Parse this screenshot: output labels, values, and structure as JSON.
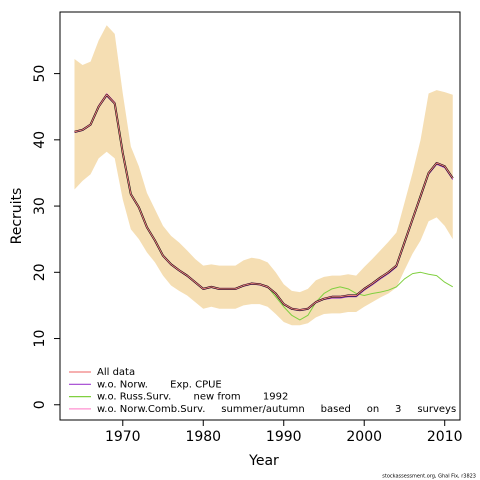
{
  "chart_data": {
    "type": "line",
    "xlabel": "Year",
    "ylabel": "Recruits",
    "footnote": "stockassessment.org, Ghal Fix, r3823",
    "x": [
      1964,
      1965,
      1966,
      1967,
      1968,
      1969,
      1970,
      1971,
      1972,
      1973,
      1974,
      1975,
      1976,
      1977,
      1978,
      1979,
      1980,
      1981,
      1982,
      1983,
      1984,
      1985,
      1986,
      1987,
      1988,
      1989,
      1990,
      1991,
      1992,
      1993,
      1994,
      1995,
      1996,
      1997,
      1998,
      1999,
      2000,
      2001,
      2002,
      2003,
      2004,
      2005,
      2006,
      2007,
      2008,
      2009,
      2010,
      2011
    ],
    "band": {
      "color": "#f5deb3",
      "upper": [
        52.2,
        51.3,
        51.8,
        55,
        57.3,
        56,
        47,
        39,
        36,
        32,
        29.5,
        27,
        25.5,
        24.5,
        23.3,
        22,
        21,
        21.2,
        21,
        21,
        21,
        21.8,
        22.2,
        22,
        21.5,
        20,
        18.2,
        17.2,
        17,
        17.5,
        18.8,
        19.3,
        19.5,
        19.5,
        19.7,
        19.5,
        20.8,
        22,
        23.3,
        24.6,
        26,
        30.5,
        35,
        40,
        47,
        47.5,
        47.2,
        46.8
      ],
      "lower": [
        32.5,
        33.8,
        34.8,
        37.2,
        38.2,
        37.2,
        31,
        26.5,
        25,
        23,
        21.5,
        19.5,
        18,
        17.2,
        16.5,
        15.5,
        14.5,
        14.8,
        14.5,
        14.5,
        14.5,
        15,
        15.2,
        15.2,
        14.8,
        13.7,
        12.5,
        12,
        12,
        12.3,
        13.2,
        13.7,
        13.8,
        13.8,
        14,
        14,
        14.8,
        15.5,
        16.2,
        16.8,
        17.7,
        20.3,
        22.8,
        24.8,
        27.7,
        28.3,
        27,
        25
      ]
    },
    "series": [
      {
        "name": "All data",
        "color": "#f08080",
        "values": [
          41.2,
          41.5,
          42.3,
          45,
          46.8,
          45.5,
          38,
          31.8,
          29.8,
          26.8,
          24.8,
          22.5,
          21.2,
          20.3,
          19.5,
          18.5,
          17.5,
          17.8,
          17.5,
          17.5,
          17.5,
          18,
          18.3,
          18.2,
          17.8,
          16.8,
          15.2,
          14.5,
          14.3,
          14.5,
          15.5,
          16,
          16.3,
          16.3,
          16.5,
          16.5,
          17.5,
          18.3,
          19.2,
          20,
          21,
          24.5,
          28,
          31.5,
          35,
          36.5,
          36,
          34.2
        ]
      },
      {
        "name": "w.o. Norw.       Exp. CPUE",
        "color": "#a040d0",
        "values": [
          41.1,
          41.4,
          42.2,
          44.9,
          46.6,
          45.4,
          37.9,
          31.7,
          29.7,
          26.7,
          24.7,
          22.4,
          21.1,
          20.2,
          19.4,
          18.4,
          17.4,
          17.7,
          17.4,
          17.4,
          17.4,
          17.9,
          18.2,
          18.1,
          17.7,
          16.7,
          15.1,
          14.4,
          14.2,
          14.4,
          15.4,
          15.9,
          16.1,
          16.1,
          16.3,
          16.3,
          17.3,
          18.1,
          19,
          19.8,
          20.8,
          24.3,
          27.8,
          31.3,
          34.8,
          36.3,
          35.8,
          34
        ]
      },
      {
        "name": "w.o. Russ.Surv.       new from       1992",
        "color": "#80d040",
        "values": [
          41.2,
          41.5,
          42.3,
          45,
          46.8,
          45.5,
          38,
          31.8,
          29.8,
          26.8,
          24.8,
          22.5,
          21.2,
          20.3,
          19.5,
          18.5,
          17.5,
          17.8,
          17.5,
          17.5,
          17.5,
          18,
          18.3,
          18.2,
          17.8,
          16.3,
          14.8,
          13.5,
          12.8,
          13.5,
          15.5,
          16.8,
          17.5,
          17.8,
          17.5,
          16.8,
          16.5,
          16.8,
          17,
          17.3,
          17.8,
          19,
          19.8,
          20,
          19.7,
          19.5,
          18.5,
          17.8
        ]
      },
      {
        "name": "w.o. Norw.Comb.Surv.     summer/autumn     based     on     3     surveys",
        "color": "#ff90d0",
        "values": [
          41.3,
          41.6,
          42.4,
          45.2,
          47,
          45.7,
          38.1,
          31.9,
          29.9,
          26.9,
          24.9,
          22.6,
          21.3,
          20.4,
          19.6,
          18.6,
          17.6,
          17.9,
          17.6,
          17.6,
          17.6,
          18.1,
          18.4,
          18.3,
          17.9,
          16.9,
          15.3,
          14.6,
          14.4,
          14.6,
          15.6,
          16.1,
          16.4,
          16.4,
          16.6,
          16.6,
          17.6,
          18.4,
          19.3,
          20.1,
          21.1,
          24.6,
          28.1,
          31.6,
          35.1,
          36.6,
          36.1,
          34.3
        ]
      }
    ],
    "xlim": [
      1962.2,
      2011.9
    ],
    "xticks": [
      1970,
      1980,
      1990,
      2000,
      2010
    ],
    "ylim": [
      -2.3,
      59.3
    ],
    "yticks": [
      0,
      10,
      20,
      30,
      40,
      50
    ]
  }
}
